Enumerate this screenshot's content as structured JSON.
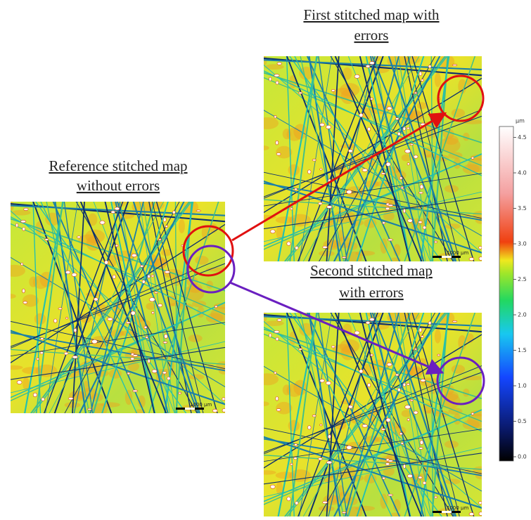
{
  "maps": [
    {
      "title_lines": [
        "Reference stitched map",
        "without errors"
      ],
      "scale_label": "1000 µm"
    },
    {
      "title_lines": [
        "First stitched map with",
        "errors"
      ],
      "scale_label": "1000 µm"
    },
    {
      "title_lines": [
        "Second stitched map",
        "with errors"
      ],
      "scale_label": "1000 µm"
    }
  ],
  "colorbar": {
    "unit": "µm",
    "ticks": [
      {
        "value": 0,
        "label": "0.0"
      },
      {
        "value": 0.5,
        "label": "0.5"
      },
      {
        "value": 1,
        "label": "1.0"
      },
      {
        "value": 1.5,
        "label": "1.5"
      },
      {
        "value": 2,
        "label": "2.0"
      },
      {
        "value": 2.5,
        "label": "2.5"
      },
      {
        "value": 3,
        "label": "3.0"
      },
      {
        "value": 3.5,
        "label": "3.5"
      },
      {
        "value": 4,
        "label": "4.0"
      },
      {
        "value": 4.5,
        "label": "4.5"
      }
    ]
  }
}
